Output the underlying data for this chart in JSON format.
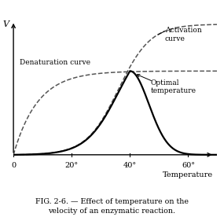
{
  "title": "FIG. 2-6. — Effect of temperature on the\nvelocity of an enzymatic reaction.",
  "xlabel": "Temperature",
  "ylabel": "V",
  "xlim": [
    0,
    70
  ],
  "ylim": [
    -0.05,
    1.2
  ],
  "background_color": "#ffffff",
  "curve_color": "#000000",
  "dashed_color": "#555555",
  "denaturation_label": "Denaturation curve",
  "activation_label": "Activation\ncurve",
  "optimal_label": "Optimal\ntemperature"
}
